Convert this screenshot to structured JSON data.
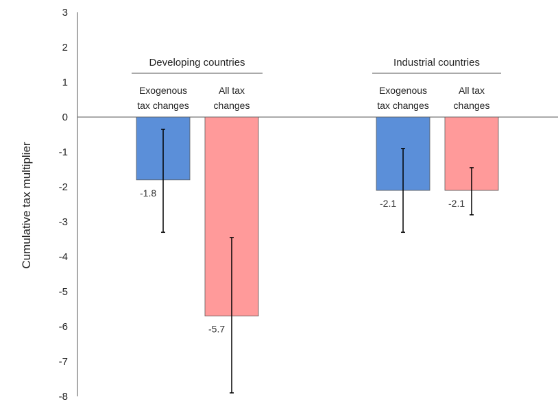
{
  "chart_data": {
    "type": "bar",
    "ylabel": "Cumulative tax multiplier",
    "ylim": [
      -8,
      3
    ],
    "yticks": [
      3,
      2,
      1,
      0,
      -1,
      -2,
      -3,
      -4,
      -5,
      -6,
      -7,
      -8
    ],
    "grid": false,
    "groups": [
      {
        "name": "Developing countries",
        "bars": [
          {
            "label_line1": "Exogenous",
            "label_line2": "tax changes",
            "value": -1.8,
            "value_label": "-1.8",
            "err_low": -3.3,
            "err_high": -0.35,
            "color": "#5b8fd9"
          },
          {
            "label_line1": "All tax",
            "label_line2": "changes",
            "value": -5.7,
            "value_label": "-5.7",
            "err_low": -7.9,
            "err_high": -3.45,
            "color": "#ff9a9a"
          }
        ]
      },
      {
        "name": "Industrial countries",
        "bars": [
          {
            "label_line1": "Exogenous",
            "label_line2": "tax changes",
            "value": -2.1,
            "value_label": "-2.1",
            "err_low": -3.3,
            "err_high": -0.9,
            "color": "#5b8fd9"
          },
          {
            "label_line1": "All tax",
            "label_line2": "changes",
            "value": -2.1,
            "value_label": "-2.1",
            "err_low": -2.8,
            "err_high": -1.45,
            "color": "#ff9a9a"
          }
        ]
      }
    ]
  }
}
